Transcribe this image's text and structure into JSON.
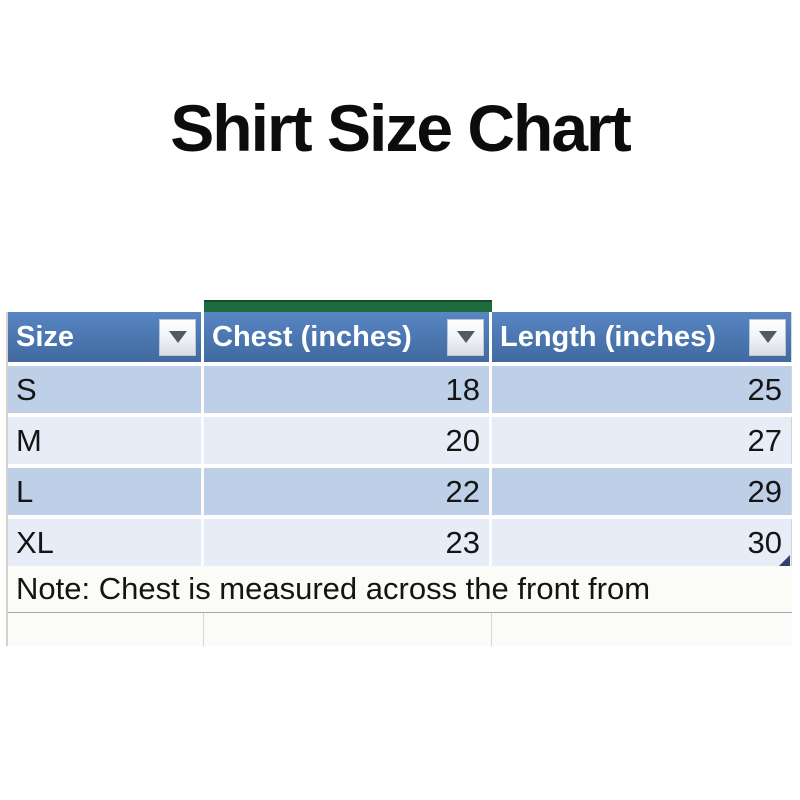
{
  "page": {
    "title": "Shirt Size Chart"
  },
  "spreadsheet": {
    "columns": [
      {
        "label": "Size"
      },
      {
        "label": "Chest (inches)"
      },
      {
        "label": "Length (inches)"
      }
    ],
    "rows": [
      {
        "size": "S",
        "chest": "18",
        "length": "25"
      },
      {
        "size": "M",
        "chest": "20",
        "length": "27"
      },
      {
        "size": "L",
        "chest": "22",
        "length": "29"
      },
      {
        "size": "XL",
        "chest": "23",
        "length": "30"
      }
    ],
    "note": "Note: Chest is measured across the front from"
  },
  "colors": {
    "header_blue": "#4a76b0",
    "band_dark": "#bdd0e7",
    "band_light": "#e6edf6",
    "selection_green": "#1e6b3e",
    "grid_white": "#fdfdfd",
    "title_black": "#0c0c0c"
  }
}
